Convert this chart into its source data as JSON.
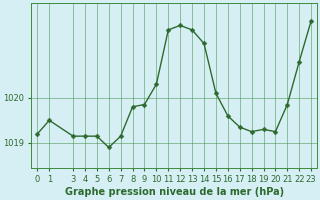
{
  "x": [
    0,
    1,
    3,
    4,
    5,
    6,
    7,
    8,
    9,
    10,
    11,
    12,
    13,
    14,
    15,
    16,
    17,
    18,
    19,
    20,
    21,
    22,
    23
  ],
  "y": [
    1019.2,
    1019.5,
    1019.15,
    1019.15,
    1019.15,
    1018.9,
    1019.15,
    1019.8,
    1019.85,
    1020.3,
    1021.5,
    1021.6,
    1021.5,
    1021.2,
    1020.1,
    1019.6,
    1019.35,
    1019.25,
    1019.3,
    1019.25,
    1019.85,
    1020.8,
    1021.7
  ],
  "line_color": "#2d6a2d",
  "marker": "D",
  "markersize": 2.5,
  "linewidth": 1.0,
  "background_color": "#d6eff5",
  "grid_color": "#3d8b3d",
  "grid_linewidth": 0.5,
  "xlabel": "Graphe pression niveau de la mer (hPa)",
  "xlabel_fontsize": 7.0,
  "ytick_values": [
    1019,
    1020
  ],
  "ytick_labels": [
    "1019",
    "1020"
  ],
  "xticks": [
    0,
    1,
    3,
    4,
    5,
    6,
    7,
    8,
    9,
    10,
    11,
    12,
    13,
    14,
    15,
    16,
    17,
    18,
    19,
    20,
    21,
    22,
    23
  ],
  "xtick_labels": [
    "0",
    "1",
    "3",
    "4",
    "5",
    "6",
    "7",
    "8",
    "9",
    "10",
    "11",
    "12",
    "13",
    "14",
    "15",
    "16",
    "17",
    "18",
    "19",
    "20",
    "21",
    "22",
    "23"
  ],
  "xlim": [
    -0.5,
    23.5
  ],
  "ylim": [
    1018.45,
    1022.1
  ],
  "tick_fontsize": 6,
  "tick_color": "#2d6a2d"
}
